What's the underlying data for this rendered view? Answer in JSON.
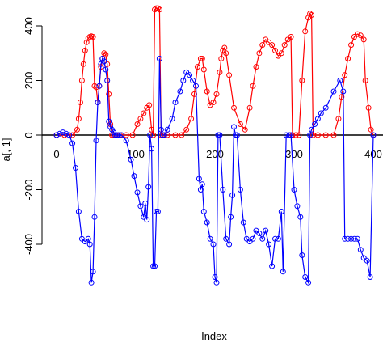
{
  "chart_data": {
    "type": "line",
    "title": "",
    "xlabel": "Index",
    "ylabel": "a[, 1]",
    "xlim": [
      0,
      400
    ],
    "ylim": [
      -560,
      470
    ],
    "xticks": [
      "0",
      "100",
      "200",
      "300",
      "400"
    ],
    "yticks": [
      "-400",
      "-200",
      "0",
      "200",
      "400"
    ],
    "ytick_values": [
      -400,
      -200,
      0,
      200,
      400
    ],
    "xtick_values": [
      0,
      100,
      200,
      300,
      400
    ],
    "hline": 0,
    "grid": false,
    "series": [
      {
        "color": "#ff0000",
        "marker": "open-circle",
        "x": [
          0,
          10,
          20,
          26,
          28,
          30,
          32,
          34,
          36,
          38,
          40,
          42,
          44,
          46,
          48,
          50,
          52,
          54,
          56,
          58,
          60,
          62,
          64,
          66,
          68,
          70,
          72,
          74,
          80,
          88,
          96,
          102,
          106,
          110,
          114,
          117,
          120,
          122,
          124,
          126,
          128,
          130,
          132,
          134,
          136,
          140,
          150,
          158,
          164,
          170,
          174,
          178,
          182,
          184,
          186,
          190,
          194,
          198,
          202,
          206,
          208,
          210,
          212,
          214,
          218,
          224,
          232,
          238,
          244,
          248,
          252,
          256,
          260,
          264,
          268,
          272,
          276,
          280,
          284,
          288,
          292,
          296,
          298,
          302,
          306,
          310,
          314,
          318,
          320,
          322,
          324,
          330,
          340,
          350,
          356,
          360,
          364,
          368,
          372,
          376,
          380,
          384,
          388,
          390,
          394,
          397,
          400
        ],
        "y": [
          0,
          0,
          0,
          20,
          60,
          120,
          200,
          260,
          310,
          340,
          355,
          360,
          362,
          360,
          180,
          175,
          120,
          180,
          250,
          280,
          300,
          295,
          260,
          150,
          40,
          0,
          0,
          0,
          0,
          0,
          0,
          40,
          60,
          80,
          100,
          110,
          20,
          0,
          460,
          465,
          465,
          460,
          0,
          0,
          0,
          0,
          0,
          0,
          20,
          60,
          150,
          250,
          280,
          280,
          240,
          160,
          110,
          120,
          150,
          230,
          280,
          310,
          320,
          300,
          220,
          100,
          40,
          20,
          100,
          180,
          250,
          300,
          330,
          350,
          340,
          330,
          310,
          290,
          300,
          330,
          350,
          360,
          0,
          0,
          0,
          200,
          380,
          430,
          445,
          440,
          0,
          0,
          0,
          0,
          60,
          140,
          220,
          280,
          330,
          360,
          370,
          365,
          350,
          200,
          100,
          20,
          0
        ]
      },
      {
        "color": "#0000ff",
        "marker": "open-circle",
        "x": [
          0,
          4,
          8,
          12,
          16,
          20,
          24,
          28,
          32,
          36,
          40,
          42,
          44,
          46,
          48,
          50,
          52,
          54,
          56,
          58,
          60,
          62,
          64,
          66,
          68,
          70,
          72,
          74,
          76,
          78,
          82,
          88,
          94,
          98,
          102,
          106,
          110,
          112,
          114,
          116,
          118,
          120,
          122,
          124,
          126,
          128,
          130,
          132,
          134,
          136,
          140,
          146,
          150,
          156,
          160,
          164,
          168,
          172,
          176,
          180,
          182,
          184,
          186,
          190,
          194,
          198,
          200,
          202,
          204,
          206,
          210,
          214,
          218,
          220,
          222,
          224,
          226,
          228,
          232,
          236,
          240,
          244,
          248,
          252,
          256,
          260,
          264,
          268,
          272,
          276,
          280,
          284,
          286,
          290,
          294,
          296,
          300,
          304,
          308,
          310,
          314,
          318,
          320,
          322,
          326,
          330,
          334,
          340,
          350,
          358,
          362,
          364,
          368,
          372,
          376,
          380,
          384,
          388,
          392,
          396,
          400
        ],
        "y": [
          0,
          5,
          10,
          5,
          0,
          -30,
          -120,
          -280,
          -380,
          -390,
          -380,
          -400,
          -540,
          -500,
          -300,
          -20,
          120,
          180,
          260,
          280,
          270,
          240,
          200,
          50,
          30,
          20,
          10,
          0,
          0,
          0,
          0,
          -20,
          -90,
          -150,
          -210,
          -260,
          -300,
          -250,
          -310,
          -190,
          0,
          -50,
          -480,
          -480,
          -280,
          -280,
          280,
          20,
          0,
          0,
          20,
          60,
          120,
          160,
          200,
          230,
          220,
          200,
          180,
          -160,
          -200,
          -180,
          -280,
          -320,
          -380,
          -400,
          -520,
          -540,
          0,
          0,
          -200,
          -380,
          -400,
          -300,
          -220,
          30,
          0,
          0,
          -200,
          -320,
          -380,
          -390,
          -380,
          -350,
          -360,
          -380,
          -350,
          -400,
          -480,
          -380,
          -380,
          -280,
          -500,
          0,
          0,
          0,
          -200,
          -260,
          -300,
          -440,
          -520,
          -540,
          0,
          20,
          40,
          60,
          80,
          100,
          160,
          200,
          160,
          -380,
          -380,
          -380,
          -380,
          -380,
          -420,
          -450,
          -460,
          -520,
          0
        ]
      }
    ]
  }
}
